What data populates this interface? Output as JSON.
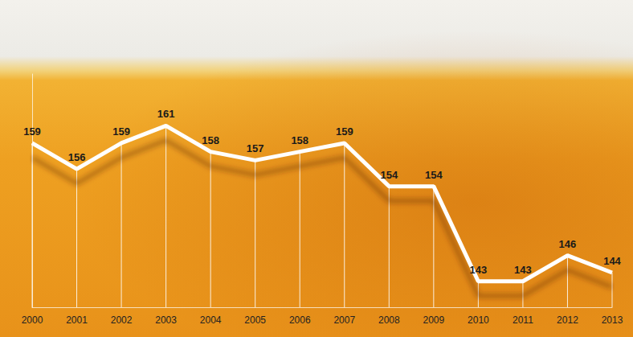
{
  "chart_data": {
    "type": "line",
    "categories": [
      "2000",
      "2001",
      "2002",
      "2003",
      "2004",
      "2005",
      "2006",
      "2007",
      "2008",
      "2009",
      "2010",
      "2011",
      "2012",
      "2013"
    ],
    "values": [
      159,
      156,
      159,
      161,
      158,
      157,
      158,
      159,
      154,
      154,
      143,
      143,
      146,
      144
    ],
    "color": "#ffffff",
    "ylim": [
      140,
      167
    ],
    "data_labels": true,
    "tick_labels": "x"
  }
}
